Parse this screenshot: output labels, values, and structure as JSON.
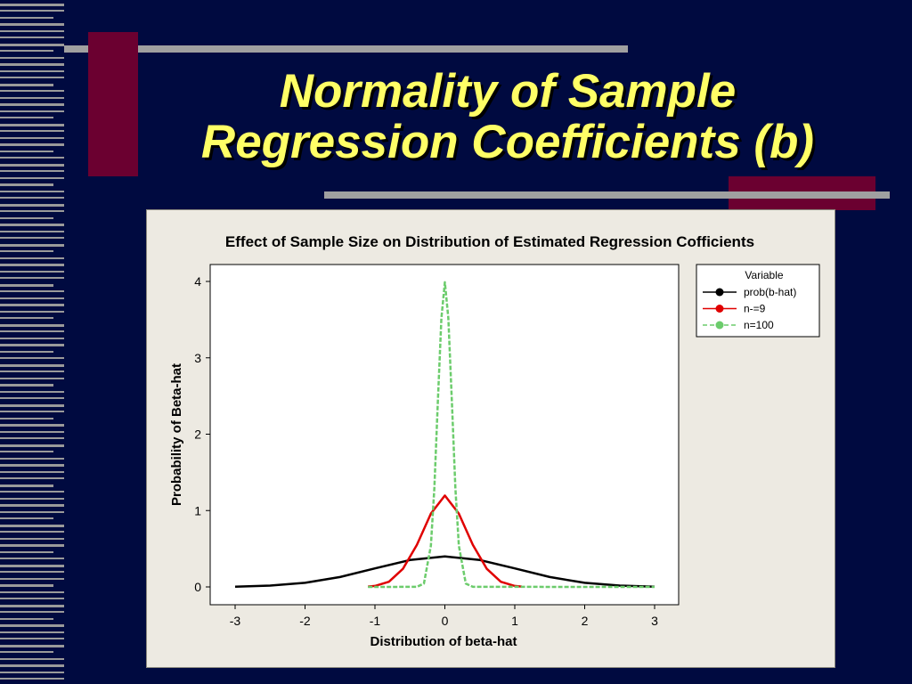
{
  "slide": {
    "title_lines": [
      "Normality of Sample",
      "Regression Coefficients (b)"
    ]
  },
  "colors": {
    "background": "#000a40",
    "title": "#ffff66",
    "accent_bar": "#a0a0a0",
    "accent_block": "#6b0030",
    "panel": "#edeae2",
    "series_black": "#000000",
    "series_red": "#e00000",
    "series_green": "#6ccc6c"
  },
  "chart_data": {
    "type": "line",
    "title": "Effect of Sample Size on Distribution of Estimated Regression Cofficients",
    "xlabel": "Distribution of beta-hat",
    "ylabel": "Probability of Beta-hat",
    "xlim": [
      -3,
      3
    ],
    "ylim": [
      0,
      4
    ],
    "xticks": [
      -3,
      -2,
      -1,
      0,
      1,
      2,
      3
    ],
    "yticks": [
      0,
      1,
      2,
      3,
      4
    ],
    "grid": false,
    "legend": {
      "title": "Variable",
      "placement": "right"
    },
    "series": [
      {
        "name": "prob(b-hat)",
        "color": "#000000",
        "style": "solid",
        "x": [
          -3,
          -2.5,
          -2,
          -1.5,
          -1,
          -0.5,
          0,
          0.5,
          1,
          1.5,
          2,
          2.5,
          3
        ],
        "y": [
          0.004,
          0.018,
          0.054,
          0.13,
          0.242,
          0.352,
          0.399,
          0.352,
          0.242,
          0.13,
          0.054,
          0.018,
          0.004
        ]
      },
      {
        "name": "n-=9",
        "color": "#e00000",
        "style": "solid",
        "x": [
          -1.1,
          -1,
          -0.8,
          -0.6,
          -0.4,
          -0.2,
          0,
          0.2,
          0.4,
          0.6,
          0.8,
          1,
          1.1
        ],
        "y": [
          0.005,
          0.013,
          0.068,
          0.237,
          0.55,
          0.96,
          1.197,
          0.96,
          0.55,
          0.237,
          0.068,
          0.013,
          0.005
        ]
      },
      {
        "name": "n=100",
        "color": "#6ccc6c",
        "style": "dashed",
        "x": [
          -1.1,
          -0.4,
          -0.3,
          -0.2,
          -0.15,
          -0.1,
          -0.05,
          0,
          0.05,
          0.1,
          0.15,
          0.2,
          0.3,
          0.4,
          3
        ],
        "y": [
          0,
          0.001,
          0.044,
          0.54,
          1.295,
          2.42,
          3.52,
          3.99,
          3.52,
          2.42,
          1.295,
          0.54,
          0.044,
          0.001,
          0
        ]
      }
    ]
  }
}
